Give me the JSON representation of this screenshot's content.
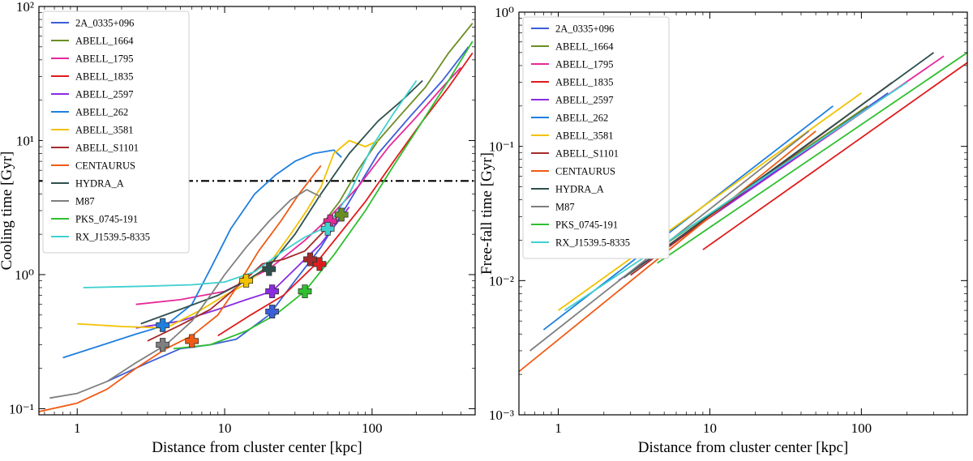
{
  "chart_data": [
    {
      "type": "line",
      "scale": "log-log",
      "xlabel": "Distance from cluster center [kpc]",
      "ylabel": "Cooling time [Gyr]",
      "xlim": [
        0.55,
        500
      ],
      "ylim": [
        0.09,
        100
      ],
      "x_ticks": [
        {
          "value": 1,
          "label": "1"
        },
        {
          "value": 10,
          "label": "10"
        },
        {
          "value": 100,
          "label": "100"
        }
      ],
      "y_ticks": [
        {
          "value": 0.1,
          "label": "10⁻¹"
        },
        {
          "value": 1,
          "label": "10⁰"
        },
        {
          "value": 10,
          "label": "10¹"
        },
        {
          "value": 100,
          "label": "10²"
        }
      ],
      "reference_line": {
        "value": 5,
        "style": "dash-dot",
        "color": "#000000"
      },
      "legend_position": "top-left",
      "series": [
        {
          "name": "2A_0335+096",
          "color": "#3b5fd9",
          "x": [
            1.6,
            3,
            5,
            8,
            12,
            20,
            30,
            45,
            70,
            110,
            180,
            300,
            450
          ],
          "y": [
            0.16,
            0.22,
            0.28,
            0.3,
            0.33,
            0.5,
            0.9,
            1.6,
            3.5,
            8,
            15,
            28,
            50
          ],
          "marker": {
            "x": 21,
            "y": 0.53
          }
        },
        {
          "name": "ABELL_1664",
          "color": "#6b8e23",
          "x": [
            45,
            60,
            80,
            110,
            160,
            230,
            330,
            480
          ],
          "y": [
            2.3,
            3.5,
            6,
            10,
            16,
            25,
            45,
            75
          ],
          "marker": {
            "x": 62,
            "y": 2.8
          }
        },
        {
          "name": "ABELL_1795",
          "color": "#e6289a",
          "x": [
            2.5,
            5,
            10,
            20,
            35,
            50,
            80,
            130,
            200,
            300,
            400
          ],
          "y": [
            0.6,
            0.65,
            0.75,
            1.1,
            1.8,
            2.6,
            4.5,
            9,
            15,
            25,
            35
          ],
          "marker": {
            "x": 52,
            "y": 2.5
          }
        },
        {
          "name": "ABELL_1835",
          "color": "#e01b1b",
          "x": [
            9,
            15,
            25,
            40,
            60,
            90,
            140,
            220,
            330,
            480
          ],
          "y": [
            0.35,
            0.5,
            0.7,
            1.15,
            2,
            3.5,
            7,
            14,
            25,
            45
          ],
          "marker": {
            "x": 44,
            "y": 1.2
          }
        },
        {
          "name": "ABELL_2597",
          "color": "#8a2be2",
          "x": [
            2.5,
            5,
            9,
            14,
            21,
            30,
            45,
            70
          ],
          "y": [
            0.4,
            0.45,
            0.55,
            0.65,
            0.75,
            1.1,
            1.7,
            3.2
          ],
          "marker": {
            "x": 21,
            "y": 0.75
          }
        },
        {
          "name": "ABELL_262",
          "color": "#1e7fe0",
          "x": [
            0.8,
            1.5,
            2.5,
            4,
            6,
            8,
            11,
            16,
            22,
            30,
            40,
            55,
            62
          ],
          "y": [
            0.24,
            0.3,
            0.36,
            0.42,
            0.6,
            1.1,
            2.2,
            4,
            5.5,
            7,
            8,
            8.5,
            7.5
          ],
          "marker": {
            "x": 3.8,
            "y": 0.42
          }
        },
        {
          "name": "ABELL_3581",
          "color": "#f2c200",
          "x": [
            1,
            2,
            4,
            7,
            10,
            14,
            20,
            28,
            36,
            45,
            55,
            70,
            90,
            110
          ],
          "y": [
            0.43,
            0.41,
            0.4,
            0.55,
            0.7,
            0.85,
            1.2,
            2,
            3,
            4.5,
            8,
            10,
            9,
            10
          ],
          "marker": {
            "x": 14,
            "y": 0.9
          }
        },
        {
          "name": "ABELL_S1101",
          "color": "#a52a2a",
          "x": [
            3,
            5,
            8,
            12,
            18,
            25,
            35,
            45,
            60
          ],
          "y": [
            0.32,
            0.42,
            0.55,
            0.8,
            1.2,
            1.3,
            1.5,
            2,
            2.8
          ],
          "marker": {
            "x": 38,
            "y": 1.3
          }
        },
        {
          "name": "CENTAURUS",
          "color": "#f05a14",
          "x": [
            0.55,
            1,
            1.6,
            2.5,
            4,
            6,
            9,
            12,
            17,
            24,
            32,
            40,
            45
          ],
          "y": [
            0.095,
            0.11,
            0.14,
            0.2,
            0.28,
            0.35,
            0.5,
            0.8,
            1.5,
            2.5,
            4,
            5.5,
            6.5
          ],
          "marker": {
            "x": 6,
            "y": 0.32
          }
        },
        {
          "name": "HYDRA_A",
          "color": "#2f4f4f",
          "x": [
            2.7,
            5,
            9,
            14,
            20,
            30,
            45,
            70,
            110,
            160,
            220
          ],
          "y": [
            0.43,
            0.55,
            0.7,
            0.9,
            1.15,
            2,
            4,
            8,
            14,
            20,
            28
          ],
          "marker": {
            "x": 20,
            "y": 1.1
          }
        },
        {
          "name": "M87",
          "color": "#7f7f7f",
          "x": [
            0.65,
            1,
            1.6,
            2.5,
            4,
            6,
            8,
            10,
            14,
            20,
            28,
            36,
            45
          ],
          "y": [
            0.12,
            0.13,
            0.16,
            0.22,
            0.3,
            0.45,
            0.7,
            1,
            1.6,
            2.5,
            3.6,
            4.3,
            3.8
          ],
          "marker": {
            "x": 3.8,
            "y": 0.3
          }
        },
        {
          "name": "PKS_0745-191",
          "color": "#2fbf2f",
          "x": [
            4.5,
            8,
            14,
            22,
            35,
            55,
            90,
            140,
            220,
            330,
            480
          ],
          "y": [
            0.28,
            0.3,
            0.38,
            0.5,
            0.75,
            1.4,
            3,
            6.5,
            14,
            28,
            55
          ],
          "marker": {
            "x": 35,
            "y": 0.75
          }
        },
        {
          "name": "RX_J1539.5-8335",
          "color": "#40d0d0",
          "x": [
            1.1,
            3,
            6,
            10,
            16,
            25,
            35,
            50,
            70,
            100,
            140,
            200
          ],
          "y": [
            0.8,
            0.82,
            0.84,
            0.88,
            1.05,
            1.5,
            1.9,
            2.3,
            4,
            9,
            16,
            28
          ],
          "marker": {
            "x": 50,
            "y": 2.2
          }
        }
      ]
    },
    {
      "type": "line",
      "scale": "log-log",
      "xlabel": "Distance from cluster center [kpc]",
      "ylabel": "Free-fall time [Gyr]",
      "xlim": [
        0.55,
        500
      ],
      "ylim": [
        0.001,
        1
      ],
      "x_ticks": [
        {
          "value": 1,
          "label": "1"
        },
        {
          "value": 10,
          "label": "10"
        },
        {
          "value": 100,
          "label": "100"
        }
      ],
      "y_ticks": [
        {
          "value": 0.001,
          "label": "10⁻³"
        },
        {
          "value": 0.01,
          "label": "10⁻²"
        },
        {
          "value": 0.1,
          "label": "10⁻¹"
        },
        {
          "value": 1,
          "label": "10⁰"
        }
      ],
      "legend_position": "top-left",
      "series": [
        {
          "name": "2A_0335+096",
          "color": "#3b5fd9",
          "x": [
            2.5,
            150
          ],
          "y": [
            0.01,
            0.25
          ]
        },
        {
          "name": "ABELL_1664",
          "color": "#6b8e23",
          "x": [
            4.5,
            110
          ],
          "y": [
            0.017,
            0.2
          ]
        },
        {
          "name": "ABELL_1795",
          "color": "#e6289a",
          "x": [
            2.5,
            350
          ],
          "y": [
            0.01,
            0.47
          ]
        },
        {
          "name": "ABELL_1835",
          "color": "#e01b1b",
          "x": [
            9,
            500
          ],
          "y": [
            0.017,
            0.42
          ]
        },
        {
          "name": "ABELL_2597",
          "color": "#8a2be2",
          "x": [
            2.5,
            130
          ],
          "y": [
            0.01,
            0.22
          ]
        },
        {
          "name": "ABELL_262",
          "color": "#1e7fe0",
          "x": [
            0.8,
            65
          ],
          "y": [
            0.0043,
            0.2
          ]
        },
        {
          "name": "ABELL_3581",
          "color": "#f2c200",
          "x": [
            1,
            100
          ],
          "y": [
            0.006,
            0.25
          ]
        },
        {
          "name": "ABELL_S1101",
          "color": "#a52a2a",
          "x": [
            3,
            160
          ],
          "y": [
            0.011,
            0.3
          ]
        },
        {
          "name": "CENTAURUS",
          "color": "#f05a14",
          "x": [
            0.55,
            50
          ],
          "y": [
            0.0021,
            0.13
          ]
        },
        {
          "name": "HYDRA_A",
          "color": "#2f4f4f",
          "x": [
            2.7,
            300
          ],
          "y": [
            0.0105,
            0.5
          ]
        },
        {
          "name": "M87",
          "color": "#7f7f7f",
          "x": [
            0.65,
            45
          ],
          "y": [
            0.003,
            0.13
          ]
        },
        {
          "name": "PKS_0745-191",
          "color": "#2fbf2f",
          "x": [
            4.5,
            500
          ],
          "y": [
            0.0135,
            0.5
          ]
        },
        {
          "name": "RX_J1539.5-8335",
          "color": "#40d0d0",
          "x": [
            1.1,
            200
          ],
          "y": [
            0.006,
            0.3
          ]
        }
      ]
    }
  ]
}
